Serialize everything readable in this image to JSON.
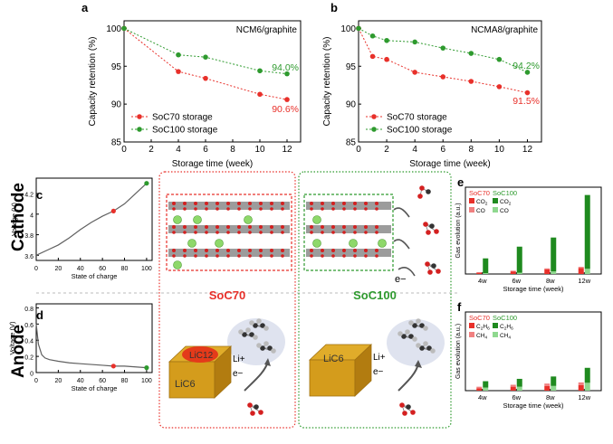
{
  "colors": {
    "red": "#e8302a",
    "green": "#2e9a2e",
    "red_light": "#f08080",
    "green_light": "#8fd88f",
    "dark_green": "#1f7a1f",
    "gold": "#d4a020"
  },
  "panel_labels": {
    "a": "a",
    "b": "b",
    "c": "c",
    "d": "d",
    "e": "e",
    "f": "f"
  },
  "chart_data": [
    {
      "panel": "a",
      "type": "line",
      "title": "NCM6/graphite",
      "xlabel": "Storage time (week)",
      "ylabel": "Capacity retention (%)",
      "xlim": [
        0,
        13
      ],
      "ylim": [
        85,
        101
      ],
      "xticks": [
        0,
        2,
        4,
        6,
        8,
        10,
        12
      ],
      "yticks": [
        85,
        90,
        95,
        100
      ],
      "series": [
        {
          "name": "SoC70 storage",
          "color": "#e8302a",
          "x": [
            0,
            4,
            6,
            10,
            12
          ],
          "y": [
            100,
            94.3,
            93.4,
            91.3,
            90.6
          ]
        },
        {
          "name": "SoC100 storage",
          "color": "#2e9a2e",
          "x": [
            0,
            4,
            6,
            10,
            12
          ],
          "y": [
            100,
            96.5,
            96.2,
            94.4,
            94.0
          ]
        }
      ],
      "annotations": [
        {
          "text": "94.0%",
          "color": "#2e9a2e"
        },
        {
          "text": "90.6%",
          "color": "#e8302a"
        }
      ]
    },
    {
      "panel": "b",
      "type": "line",
      "title": "NCMA8/graphite",
      "xlabel": "Storage time (week)",
      "ylabel": "Capacity retention (%)",
      "xlim": [
        0,
        13
      ],
      "ylim": [
        85,
        101
      ],
      "xticks": [
        0,
        2,
        4,
        6,
        8,
        10,
        12
      ],
      "yticks": [
        85,
        90,
        95,
        100
      ],
      "series": [
        {
          "name": "SoC70 storage",
          "color": "#e8302a",
          "x": [
            0,
            1,
            2,
            4,
            6,
            8,
            10,
            12
          ],
          "y": [
            100,
            96.3,
            95.9,
            94.2,
            93.6,
            93.0,
            92.3,
            91.5
          ]
        },
        {
          "name": "SoC100 storage",
          "color": "#2e9a2e",
          "x": [
            0,
            1,
            2,
            4,
            6,
            8,
            10,
            12
          ],
          "y": [
            100,
            99.0,
            98.4,
            98.2,
            97.4,
            96.7,
            95.9,
            94.2
          ]
        }
      ],
      "annotations": [
        {
          "text": "94.2%",
          "color": "#2e9a2e"
        },
        {
          "text": "91.5%",
          "color": "#e8302a"
        }
      ]
    },
    {
      "panel": "c",
      "type": "line",
      "xlabel": "State of charge",
      "ylabel": "Voltage (V)",
      "xlim": [
        0,
        105
      ],
      "ylim": [
        3.55,
        4.35
      ],
      "xticks": [
        0,
        20,
        40,
        60,
        80,
        100
      ],
      "yticks": [
        3.6,
        3.8,
        4.0,
        4.2
      ],
      "series": [
        {
          "color": "#606060",
          "x": [
            0,
            10,
            20,
            30,
            40,
            50,
            60,
            70,
            80,
            90,
            100
          ],
          "y": [
            3.6,
            3.65,
            3.7,
            3.77,
            3.85,
            3.92,
            3.98,
            4.03,
            4.1,
            4.2,
            4.3
          ]
        }
      ],
      "markers": [
        {
          "x": 70,
          "y": 4.03,
          "color": "#e8302a"
        },
        {
          "x": 100,
          "y": 4.3,
          "color": "#2e9a2e"
        }
      ]
    },
    {
      "panel": "d",
      "type": "line",
      "xlabel": "State of charge",
      "ylabel": "Voltage (V)",
      "xlim": [
        0,
        105
      ],
      "ylim": [
        0,
        0.85
      ],
      "xticks": [
        0,
        20,
        40,
        60,
        80,
        100
      ],
      "yticks": [
        0,
        0.2,
        0.4,
        0.6,
        0.8
      ],
      "series": [
        {
          "color": "#606060",
          "x": [
            0,
            2,
            5,
            8,
            12,
            20,
            30,
            40,
            50,
            60,
            70,
            80,
            90,
            100
          ],
          "y": [
            0.6,
            0.35,
            0.22,
            0.18,
            0.16,
            0.14,
            0.12,
            0.11,
            0.1,
            0.09,
            0.08,
            0.08,
            0.07,
            0.06
          ]
        }
      ],
      "markers": [
        {
          "x": 70,
          "y": 0.08,
          "color": "#e8302a"
        },
        {
          "x": 100,
          "y": 0.06,
          "color": "#2e9a2e"
        }
      ]
    },
    {
      "panel": "e",
      "type": "bar",
      "xlabel": "Storage time (week)",
      "ylabel": "Gas evolution (a.u.)",
      "categories": [
        "4w",
        "6w",
        "8w",
        "12w"
      ],
      "ylim": [
        0,
        10
      ],
      "legend_groups": [
        "SoC70",
        "SoC100"
      ],
      "series": [
        {
          "name": "CO2",
          "color": "#e8302a",
          "group": "SoC70",
          "values": [
            0.15,
            0.3,
            0.55,
            0.7
          ]
        },
        {
          "name": "CO",
          "color": "#f08080",
          "group": "SoC70",
          "values": [
            0.05,
            0.08,
            0.1,
            0.12
          ]
        },
        {
          "name": "CO2",
          "color": "#1f8a1f",
          "group": "SoC100",
          "values": [
            1.7,
            3.0,
            3.9,
            8.5
          ]
        },
        {
          "name": "CO",
          "color": "#8fd88f",
          "group": "SoC100",
          "values": [
            0.1,
            0.15,
            0.3,
            0.6
          ]
        }
      ]
    },
    {
      "panel": "f",
      "type": "bar",
      "xlabel": "Storage time (week)",
      "ylabel": "Gas evolution (a.u.)",
      "categories": [
        "4w",
        "6w",
        "8w",
        "12w"
      ],
      "ylim": [
        0,
        10
      ],
      "legend_groups": [
        "SoC70",
        "SoC100"
      ],
      "series": [
        {
          "name": "C2H6",
          "color": "#e8302a",
          "group": "SoC70",
          "values": [
            0.3,
            0.5,
            0.6,
            0.7
          ]
        },
        {
          "name": "CH4",
          "color": "#f08080",
          "group": "SoC70",
          "values": [
            0.2,
            0.25,
            0.3,
            0.35
          ]
        },
        {
          "name": "C2H6",
          "color": "#1f8a1f",
          "group": "SoC100",
          "values": [
            0.8,
            1.0,
            1.2,
            1.9
          ]
        },
        {
          "name": "CH4",
          "color": "#8fd88f",
          "group": "SoC100",
          "values": [
            0.4,
            0.5,
            0.6,
            1.0
          ]
        }
      ]
    }
  ],
  "row_labels": {
    "cathode": "Cathode",
    "anode": "Anode"
  },
  "group_labels": {
    "soc70": "SoC70",
    "soc100": "SoC100"
  },
  "anode_labels": {
    "lic12": "LiC12",
    "lic6": "LiC6",
    "li_plus": "Li+",
    "e_minus": "e−"
  }
}
